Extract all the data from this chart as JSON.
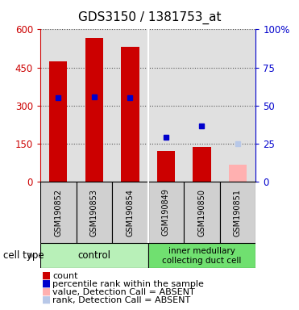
{
  "title": "GDS3150 / 1381753_at",
  "samples": [
    "GSM190852",
    "GSM190853",
    "GSM190854",
    "GSM190849",
    "GSM190850",
    "GSM190851"
  ],
  "bar_values": [
    475,
    565,
    530,
    120,
    135,
    null
  ],
  "bar_color": "#cc0000",
  "absent_bar_value": 65,
  "absent_bar_idx": 5,
  "absent_bar_color": "#ffb0b0",
  "percentile_values": [
    330,
    335,
    330,
    175,
    220,
    null
  ],
  "percentile_color": "#0000cc",
  "absent_percentile_value": 148,
  "absent_percentile_idx": 5,
  "absent_percentile_color": "#b8c8e8",
  "ylim_left": [
    0,
    600
  ],
  "ylim_right": [
    0,
    100
  ],
  "yticks_left": [
    0,
    150,
    300,
    450,
    600
  ],
  "yticks_right": [
    0,
    25,
    50,
    75,
    100
  ],
  "ytick_labels_left": [
    "0",
    "150",
    "300",
    "450",
    "600"
  ],
  "ytick_labels_right": [
    "0",
    "25",
    "50",
    "75",
    "100%"
  ],
  "left_axis_color": "#cc0000",
  "right_axis_color": "#0000cc",
  "plot_bg": "#e0e0e0",
  "white_bg": "#ffffff",
  "bar_width": 0.5,
  "group_sep": 2.5,
  "control_color": "#b8f0b8",
  "imcd_color": "#70e070",
  "label_bg": "#d0d0d0",
  "figsize": [
    3.71,
    3.84
  ],
  "dpi": 100,
  "title_fontsize": 11,
  "tick_fontsize": 8.5,
  "sample_fontsize": 7,
  "legend_fontsize": 8,
  "cell_type_fontsize": 8.5
}
